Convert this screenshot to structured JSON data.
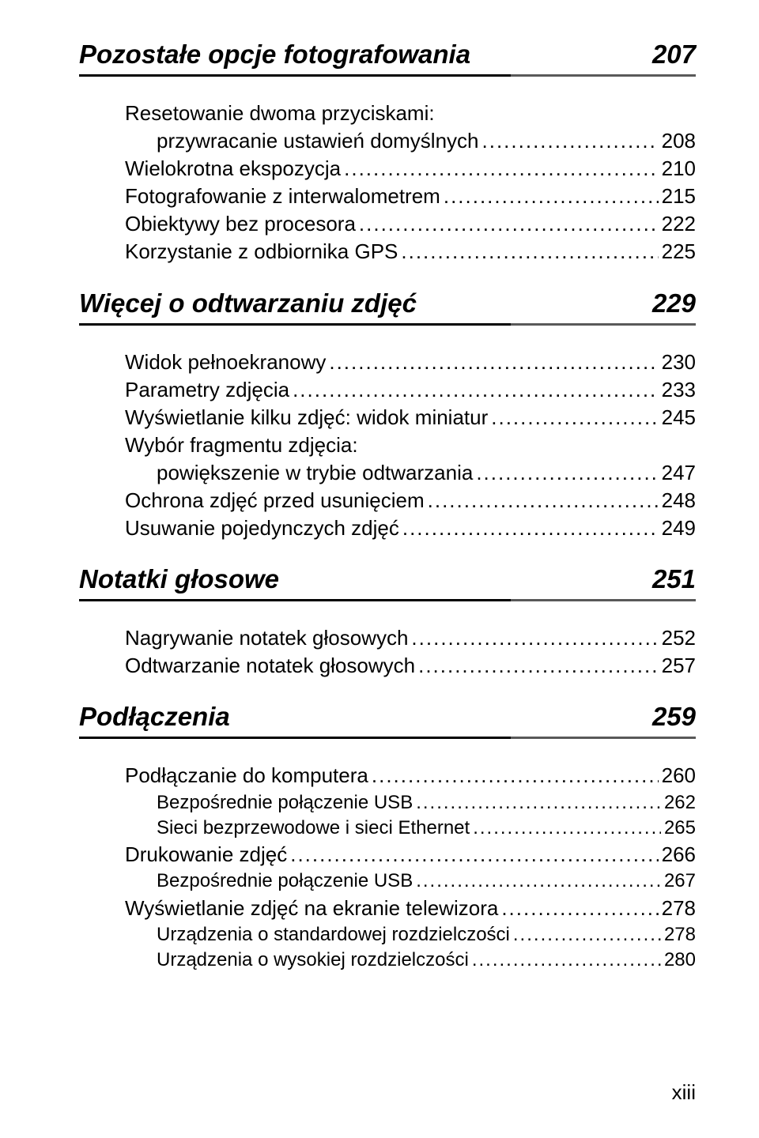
{
  "sections": [
    {
      "title": "Pozostałe opcje fotografowania",
      "page": "207",
      "entries": [
        {
          "label_lines": [
            "Resetowanie dwoma przyciskami:",
            "przywracanie ustawień domyślnych"
          ],
          "page": "208",
          "indent": 0,
          "hang": 1
        },
        {
          "label_lines": [
            "Wielokrotna ekspozycja"
          ],
          "page": "210",
          "indent": 0
        },
        {
          "label_lines": [
            "Fotografowanie z interwalometrem"
          ],
          "page": "215",
          "indent": 0
        },
        {
          "label_lines": [
            "Obiektywy bez procesora"
          ],
          "page": "222",
          "indent": 0
        },
        {
          "label_lines": [
            "Korzystanie z odbiornika GPS"
          ],
          "page": "225",
          "indent": 0
        }
      ]
    },
    {
      "title": "Więcej o odtwarzaniu zdjęć",
      "page": "229",
      "entries": [
        {
          "label_lines": [
            "Widok pełnoekranowy"
          ],
          "page": "230",
          "indent": 0
        },
        {
          "label_lines": [
            "Parametry zdjęcia"
          ],
          "page": "233",
          "indent": 0
        },
        {
          "label_lines": [
            "Wyświetlanie kilku zdjęć: widok miniatur"
          ],
          "page": "245",
          "indent": 0
        },
        {
          "label_lines": [
            "Wybór fragmentu zdjęcia:",
            "powiększenie w trybie odtwarzania"
          ],
          "page": "247",
          "indent": 0,
          "hang": 1
        },
        {
          "label_lines": [
            "Ochrona zdjęć przed usunięciem"
          ],
          "page": "248",
          "indent": 0
        },
        {
          "label_lines": [
            "Usuwanie pojedynczych zdjęć"
          ],
          "page": "249",
          "indent": 0
        }
      ]
    },
    {
      "title": "Notatki głosowe",
      "page": "251",
      "entries": [
        {
          "label_lines": [
            "Nagrywanie notatek głosowych"
          ],
          "page": "252",
          "indent": 0
        },
        {
          "label_lines": [
            "Odtwarzanie notatek głosowych"
          ],
          "page": "257",
          "indent": 0
        }
      ]
    },
    {
      "title": "Podłączenia",
      "page": "259",
      "entries": [
        {
          "label_lines": [
            "Podłączanie do komputera"
          ],
          "page": "260",
          "indent": 0
        },
        {
          "label_lines": [
            "Bezpośrednie połączenie USB"
          ],
          "page": "262",
          "indent": 1
        },
        {
          "label_lines": [
            "Sieci bezprzewodowe i sieci Ethernet"
          ],
          "page": "265",
          "indent": 1
        },
        {
          "label_lines": [
            "Drukowanie zdjęć"
          ],
          "page": "266",
          "indent": 0
        },
        {
          "label_lines": [
            "Bezpośrednie połączenie USB"
          ],
          "page": "267",
          "indent": 1
        },
        {
          "label_lines": [
            "Wyświetlanie zdjęć na ekranie telewizora"
          ],
          "page": "278",
          "indent": 0
        },
        {
          "label_lines": [
            "Urządzenia o standardowej rozdzielczości"
          ],
          "page": "278",
          "indent": 1
        },
        {
          "label_lines": [
            "Urządzenia o wysokiej rozdzielczości"
          ],
          "page": "280",
          "indent": 1
        }
      ]
    }
  ],
  "footer_page": "xiii"
}
